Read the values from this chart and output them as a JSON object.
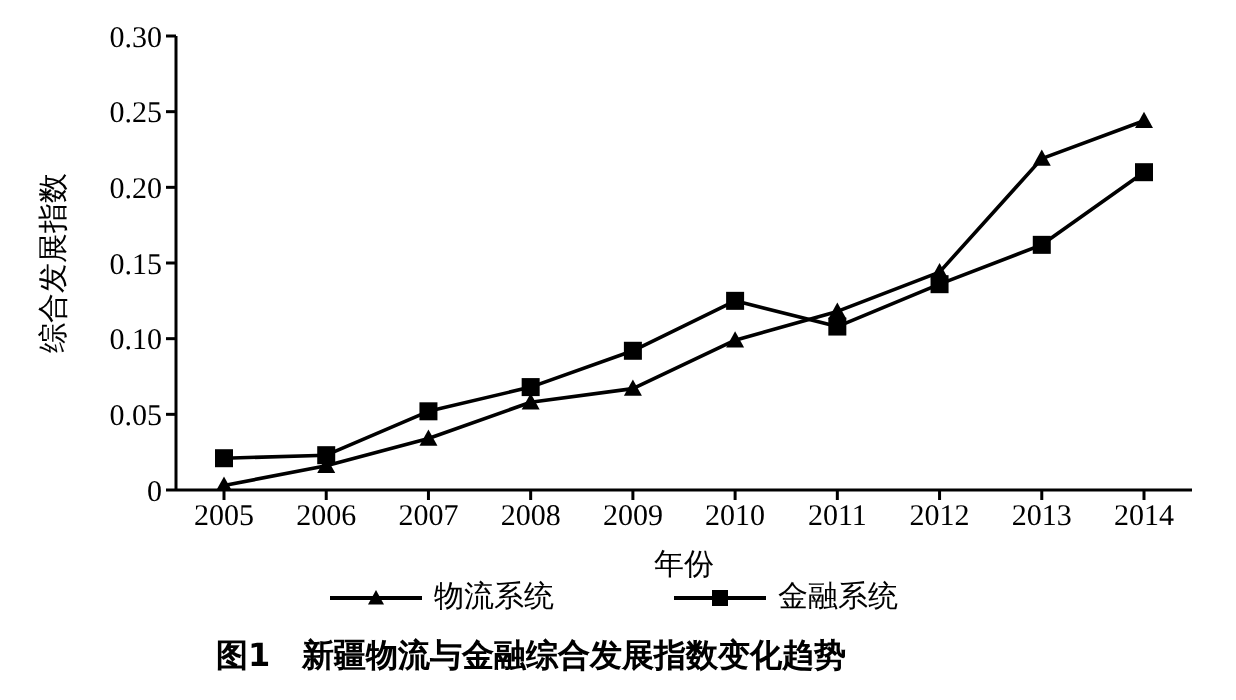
{
  "chart_data": {
    "type": "line",
    "ylabel": "综合发展指数",
    "xlabel": "年份",
    "categories": [
      "2005",
      "2006",
      "2007",
      "2008",
      "2009",
      "2010",
      "2011",
      "2012",
      "2013",
      "2014"
    ],
    "series": [
      {
        "name": "物流系统",
        "color": "#000000",
        "marker": "triangle",
        "values": [
          0.003,
          0.016,
          0.034,
          0.058,
          0.067,
          0.099,
          0.118,
          0.144,
          0.219,
          0.244
        ]
      },
      {
        "name": "金融系统",
        "color": "#000000",
        "marker": "square",
        "values": [
          0.021,
          0.023,
          0.052,
          0.068,
          0.092,
          0.125,
          0.108,
          0.136,
          0.162,
          0.21
        ]
      }
    ],
    "ylim": [
      0,
      0.3
    ],
    "yticks": [
      {
        "value": 0,
        "label": "0"
      },
      {
        "value": 0.05,
        "label": "0.05"
      },
      {
        "value": 0.1,
        "label": "0.10"
      },
      {
        "value": 0.15,
        "label": "0.15"
      },
      {
        "value": 0.2,
        "label": "0.20"
      },
      {
        "value": 0.25,
        "label": "0.25"
      },
      {
        "value": 0.3,
        "label": "0.30"
      }
    ],
    "grid": false,
    "legend": "bottom",
    "line_style": "solid",
    "annotations": [
      "图1　新疆物流与金融综合发展指数变化趋势"
    ]
  }
}
